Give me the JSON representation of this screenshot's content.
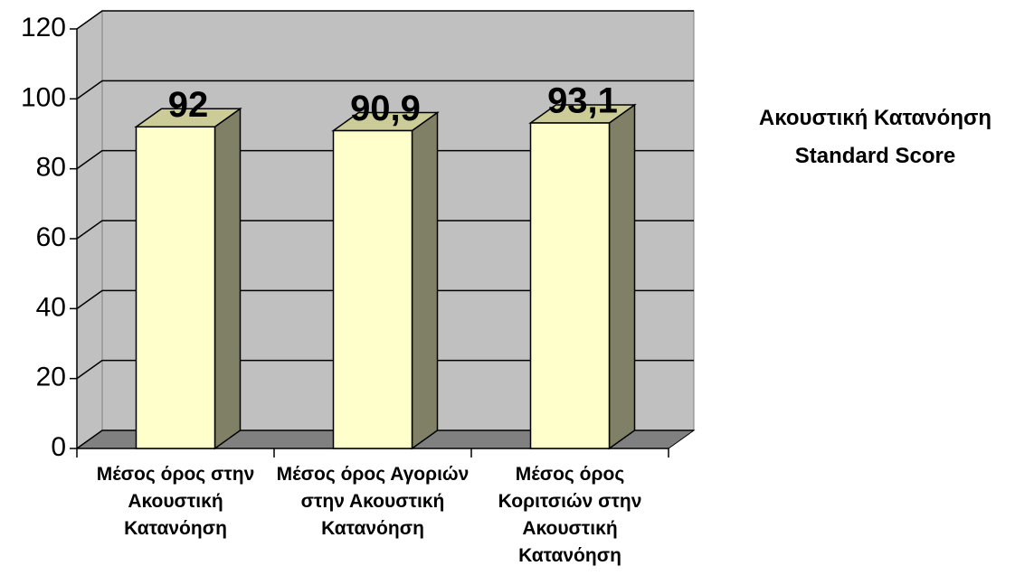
{
  "chart_data": {
    "type": "bar3d",
    "categories": [
      "Μέσος όρος στην Ακουστική Κατανόηση",
      "Μέσος όρος Αγοριών στην Ακουστική Κατανόηση",
      "Μέσος όρος Κοριτσιών στην Ακουστική Κατανόηση"
    ],
    "series": [
      {
        "name": "Ακουστική Κατανόηση Standard Score",
        "color": "#ffffcc",
        "values": [
          92,
          90.9,
          93.1
        ],
        "value_labels": [
          "92",
          "90,9",
          "93,1"
        ]
      }
    ],
    "ylim": [
      0,
      120
    ],
    "yticks": [
      0,
      20,
      40,
      60,
      80,
      100,
      120
    ],
    "grid": true
  }
}
